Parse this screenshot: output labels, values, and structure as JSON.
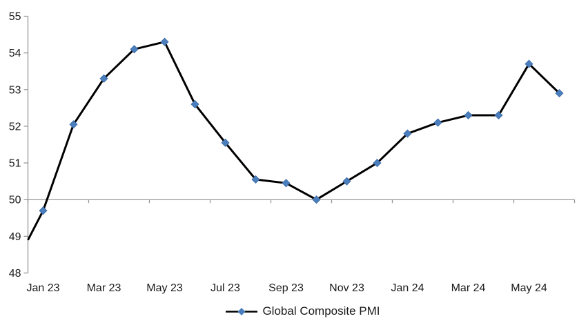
{
  "chart_data": {
    "type": "line",
    "title": "",
    "legend": "Global Composite PMI",
    "legend_position": "bottom-center",
    "x": [
      "Jan 23",
      "Feb 23",
      "Mar 23",
      "Apr 23",
      "May 23",
      "Jun 23",
      "Jul 23",
      "Aug 23",
      "Sep 23",
      "Oct 23",
      "Nov 23",
      "Dec 23",
      "Jan 24",
      "Feb 24",
      "Mar 24",
      "Apr 24",
      "May 24",
      "Jun 24"
    ],
    "series": [
      {
        "name": "Global Composite PMI",
        "values": [
          49.7,
          52.05,
          53.3,
          54.1,
          54.3,
          52.6,
          51.55,
          50.55,
          50.45,
          50.0,
          50.5,
          51.0,
          51.8,
          52.1,
          52.3,
          52.3,
          53.7,
          52.9
        ]
      }
    ],
    "line_enters_left_edge_at": 48.9,
    "x_tick_labels": [
      "Jan 23",
      "Mar 23",
      "May 23",
      "Jul 23",
      "Sep 23",
      "Nov 23",
      "Jan 24",
      "Mar 24",
      "May 24"
    ],
    "x_tick_label_every_n_categories": 2,
    "y_ticks": [
      55,
      54,
      53,
      52,
      51,
      50,
      49,
      48
    ],
    "ylim": [
      48,
      55
    ],
    "x_axis_crosses_at_value": 50,
    "grid": false,
    "marker_shape": "diamond",
    "colors": {
      "line": "#000000",
      "marker": "#4a7ebd",
      "marker_edge": "#3c6ba4",
      "axis": "#969696",
      "text": "#1a1a1a",
      "background": "#ffffff"
    }
  }
}
